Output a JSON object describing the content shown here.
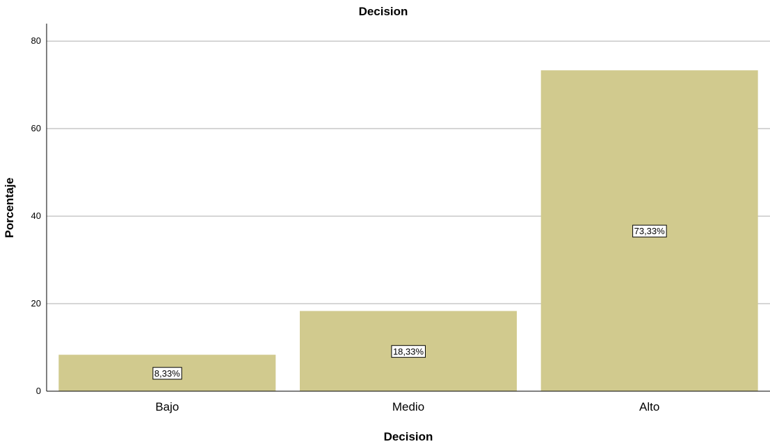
{
  "chart_data": {
    "type": "bar",
    "title": "Decision",
    "xlabel": "Decision",
    "ylabel": "Porcentaje",
    "categories": [
      "Bajo",
      "Medio",
      "Alto"
    ],
    "values": [
      8.33,
      18.33,
      73.33
    ],
    "data_labels": [
      "8,33%",
      "18,33%",
      "73,33%"
    ],
    "ylim": [
      0,
      84
    ],
    "yticks": [
      0,
      20,
      40,
      60,
      80
    ],
    "grid": true,
    "bar_color": "#d1ca8e"
  }
}
